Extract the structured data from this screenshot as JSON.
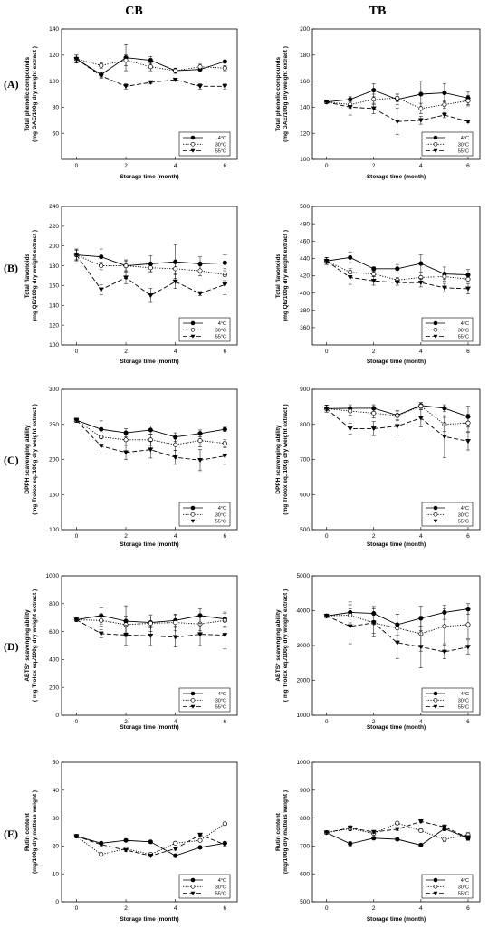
{
  "headers": {
    "left": "CB",
    "right": "TB"
  },
  "legend_labels": [
    "4°C",
    "30°C",
    "55°C"
  ],
  "chart_data": [
    {
      "id": "A-CB",
      "row": "(A)",
      "col": 0,
      "type": "line",
      "ylabel": [
        "Total phenolic compounds",
        "(mg GAE/100g dry weight extract )"
      ],
      "xlabel": "Storage time (month)",
      "ylim": [
        40,
        140
      ],
      "yticks": [
        60,
        80,
        100,
        120,
        140
      ],
      "xlim": [
        -0.6,
        6.5
      ],
      "xticks": [
        0,
        2,
        4,
        6
      ],
      "x": [
        0,
        1,
        2,
        3,
        4,
        5,
        6
      ],
      "series": [
        {
          "name": "4°C",
          "values": [
            117,
            105,
            118,
            116,
            108,
            109,
            115
          ],
          "err": [
            3,
            2,
            10,
            3,
            2,
            2,
            1
          ]
        },
        {
          "name": "30°C",
          "values": [
            117,
            112,
            116,
            111,
            108,
            111,
            110
          ],
          "err": [
            3,
            2,
            4,
            3,
            2,
            2,
            2
          ]
        },
        {
          "name": "55°C",
          "values": [
            117,
            104,
            96,
            99,
            101,
            96,
            96
          ],
          "err": [
            3,
            2,
            2,
            1,
            1,
            2,
            2
          ]
        }
      ]
    },
    {
      "id": "A-TB",
      "row": "(A)",
      "col": 1,
      "type": "line",
      "ylabel": [
        "Total phenolic compounds",
        "(mg GAE/100g dry weight extract )"
      ],
      "xlabel": "Storage time (month)",
      "ylim": [
        100,
        200
      ],
      "yticks": [
        100,
        120,
        140,
        160,
        180,
        200
      ],
      "xlim": [
        -0.6,
        6.5
      ],
      "xticks": [
        0,
        2,
        4,
        6
      ],
      "x": [
        0,
        1,
        2,
        3,
        4,
        5,
        6
      ],
      "series": [
        {
          "name": "4°C",
          "values": [
            144,
            146,
            153,
            146,
            150,
            151,
            147
          ],
          "err": [
            1,
            2,
            5,
            4,
            10,
            7,
            5
          ]
        },
        {
          "name": "30°C",
          "values": [
            144,
            142,
            146,
            147,
            139,
            142,
            145
          ],
          "err": [
            1,
            3,
            4,
            3,
            4,
            3,
            4
          ]
        },
        {
          "name": "55°C",
          "values": [
            144,
            140,
            139,
            129,
            130,
            134,
            129
          ],
          "err": [
            1,
            6,
            4,
            10,
            3,
            2,
            1
          ]
        }
      ]
    },
    {
      "id": "B-CB",
      "row": "(B)",
      "col": 0,
      "type": "line",
      "ylabel": [
        "Total flavonoids",
        "(mg QE/100g dry weight extract )"
      ],
      "xlabel": "Storage time (month)",
      "ylim": [
        100,
        240
      ],
      "yticks": [
        100,
        120,
        140,
        160,
        180,
        200,
        220,
        240
      ],
      "xlim": [
        -0.6,
        6.5
      ],
      "xticks": [
        0,
        2,
        4,
        6
      ],
      "x": [
        0,
        1,
        2,
        3,
        4,
        5,
        6
      ],
      "series": [
        {
          "name": "4°C",
          "values": [
            191,
            189,
            180,
            182,
            184,
            182,
            183
          ],
          "err": [
            6,
            8,
            6,
            8,
            17,
            7,
            8
          ]
        },
        {
          "name": "30°C",
          "values": [
            191,
            180,
            180,
            178,
            177,
            175,
            171
          ],
          "err": [
            5,
            4,
            5,
            4,
            5,
            5,
            6
          ]
        },
        {
          "name": "55°C",
          "values": [
            191,
            156,
            168,
            150,
            164,
            152,
            161
          ],
          "err": [
            5,
            5,
            6,
            7,
            7,
            2,
            10
          ]
        }
      ]
    },
    {
      "id": "B-TB",
      "row": "(B)",
      "col": 1,
      "type": "line",
      "ylabel": [
        "Total flavonoids",
        "(mg QE/100g dry weight extract )"
      ],
      "xlabel": "Storage time (month)",
      "ylim": [
        340,
        500
      ],
      "yticks": [
        360,
        380,
        400,
        420,
        440,
        460,
        480,
        500
      ],
      "xlim": [
        -0.6,
        6.5
      ],
      "xticks": [
        0,
        2,
        4,
        6
      ],
      "x": [
        0,
        1,
        2,
        3,
        4,
        5,
        6
      ],
      "series": [
        {
          "name": "4°C",
          "values": [
            437,
            441,
            428,
            428,
            434,
            422,
            421
          ],
          "err": [
            4,
            6,
            2,
            5,
            10,
            8,
            6
          ]
        },
        {
          "name": "30°C",
          "values": [
            437,
            424,
            422,
            415,
            418,
            419,
            416
          ],
          "err": [
            4,
            4,
            3,
            3,
            5,
            3,
            3
          ]
        },
        {
          "name": "55°C",
          "values": [
            437,
            418,
            414,
            412,
            412,
            406,
            405
          ],
          "err": [
            4,
            8,
            5,
            3,
            5,
            5,
            6
          ]
        }
      ]
    },
    {
      "id": "C-CB",
      "row": "(C)",
      "col": 0,
      "type": "line",
      "ylabel": [
        "DPPH scavenging ability",
        "(mg Trolox eq./100g dry weight extract )"
      ],
      "xlabel": "Storage time (month)",
      "ylim": [
        100,
        300
      ],
      "yticks": [
        100,
        150,
        200,
        250,
        300
      ],
      "xlim": [
        -0.6,
        6.5
      ],
      "xticks": [
        0,
        2,
        4,
        6
      ],
      "x": [
        0,
        1,
        2,
        3,
        4,
        5,
        6
      ],
      "series": [
        {
          "name": "4°C",
          "values": [
            256,
            243,
            238,
            242,
            232,
            237,
            243
          ],
          "err": [
            3,
            12,
            6,
            6,
            6,
            5,
            3
          ]
        },
        {
          "name": "30°C",
          "values": [
            256,
            232,
            228,
            228,
            221,
            227,
            223
          ],
          "err": [
            3,
            10,
            7,
            8,
            8,
            9,
            5
          ]
        },
        {
          "name": "55°C",
          "values": [
            256,
            219,
            210,
            214,
            203,
            199,
            205
          ],
          "err": [
            3,
            11,
            10,
            12,
            10,
            15,
            12
          ]
        }
      ]
    },
    {
      "id": "C-TB",
      "row": "(C)",
      "col": 1,
      "type": "line",
      "ylabel": [
        "DPPH scavenging ability",
        "(mg Trolox eq./100g dry weight extract )"
      ],
      "xlabel": "Storage time (month)",
      "ylim": [
        500,
        900
      ],
      "yticks": [
        500,
        600,
        700,
        800,
        900
      ],
      "xlim": [
        -0.6,
        6.5
      ],
      "xticks": [
        0,
        2,
        4,
        6
      ],
      "x": [
        0,
        1,
        2,
        3,
        4,
        5,
        6
      ],
      "series": [
        {
          "name": "4°C",
          "values": [
            845,
            846,
            846,
            826,
            854,
            846,
            822
          ],
          "err": [
            10,
            10,
            10,
            12,
            8,
            10,
            30
          ]
        },
        {
          "name": "30°C",
          "values": [
            845,
            838,
            832,
            825,
            852,
            800,
            804
          ],
          "err": [
            10,
            12,
            14,
            14,
            10,
            20,
            25
          ]
        },
        {
          "name": "55°C",
          "values": [
            845,
            788,
            788,
            795,
            818,
            765,
            752
          ],
          "err": [
            10,
            15,
            20,
            25,
            25,
            60,
            25
          ]
        }
      ]
    },
    {
      "id": "D-CB",
      "row": "(D)",
      "col": 0,
      "type": "line",
      "ylabel": [
        "ABTS⁺ scavenging ability",
        "( mg Trolox eq./100g dry weight extract )"
      ],
      "xlabel": "Storage time (month)",
      "ylim": [
        0,
        1000
      ],
      "yticks": [
        0,
        200,
        400,
        600,
        800,
        1000
      ],
      "xlim": [
        -0.6,
        6.5
      ],
      "xticks": [
        0,
        2,
        4,
        6
      ],
      "x": [
        0,
        1,
        2,
        3,
        4,
        5,
        6
      ],
      "series": [
        {
          "name": "4°C",
          "values": [
            685,
            715,
            675,
            665,
            680,
            715,
            690
          ],
          "err": [
            10,
            60,
            110,
            40,
            40,
            50,
            50
          ]
        },
        {
          "name": "30°C",
          "values": [
            685,
            680,
            650,
            660,
            665,
            655,
            680
          ],
          "err": [
            10,
            40,
            60,
            60,
            60,
            50,
            50
          ]
        },
        {
          "name": "55°C",
          "values": [
            685,
            585,
            575,
            570,
            560,
            580,
            575
          ],
          "err": [
            10,
            30,
            70,
            70,
            70,
            80,
            100
          ]
        }
      ]
    },
    {
      "id": "D-TB",
      "row": "(D)",
      "col": 1,
      "type": "line",
      "ylabel": [
        "ABTS⁺ scavenging ability",
        "( mg Trolox eq./100g dry weight extract )"
      ],
      "xlabel": "Storage time (month)",
      "ylim": [
        1000,
        5000
      ],
      "yticks": [
        1000,
        2000,
        3000,
        4000,
        5000
      ],
      "xlim": [
        -0.6,
        6.5
      ],
      "xticks": [
        0,
        2,
        4,
        6
      ],
      "x": [
        0,
        1,
        2,
        3,
        4,
        5,
        6
      ],
      "series": [
        {
          "name": "4°C",
          "values": [
            3850,
            3950,
            3920,
            3600,
            3780,
            3950,
            4050
          ],
          "err": [
            50,
            300,
            200,
            300,
            350,
            200,
            150
          ]
        },
        {
          "name": "30°C",
          "values": [
            3850,
            3870,
            3650,
            3500,
            3340,
            3550,
            3600
          ],
          "err": [
            50,
            300,
            300,
            400,
            500,
            500,
            400
          ]
        },
        {
          "name": "55°C",
          "values": [
            3850,
            3550,
            3650,
            3080,
            2960,
            2820,
            2960
          ],
          "err": [
            50,
            500,
            400,
            450,
            600,
            200,
            200
          ]
        }
      ]
    },
    {
      "id": "E-CB",
      "row": "(E)",
      "col": 0,
      "type": "line",
      "ylabel": [
        "Rutin content",
        "(mg/100g dry matters weight )"
      ],
      "xlabel": "Storage time (month)",
      "ylim": [
        0,
        50
      ],
      "yticks": [
        0,
        10,
        20,
        30,
        40,
        50
      ],
      "xlim": [
        -0.6,
        6.5
      ],
      "xticks": [
        0,
        2,
        4,
        6
      ],
      "x": [
        0,
        1,
        2,
        3,
        4,
        5,
        6
      ],
      "series": [
        {
          "name": "4°C",
          "values": [
            23.5,
            21,
            22,
            21.5,
            16.5,
            19.5,
            21
          ],
          "err": [
            0.5,
            0.5,
            0.5,
            0.5,
            0.5,
            0.5,
            0.5
          ]
        },
        {
          "name": "30°C",
          "values": [
            23.5,
            17,
            19,
            17,
            21,
            22,
            28
          ],
          "err": [
            0.5,
            0.5,
            0.5,
            0.5,
            0.5,
            0.5,
            0.5
          ]
        },
        {
          "name": "55°C",
          "values": [
            23.5,
            20.5,
            18.5,
            16.5,
            19,
            24,
            20.5
          ],
          "err": [
            0.5,
            0.5,
            0.5,
            0.5,
            0.5,
            0.5,
            0.5
          ]
        }
      ]
    },
    {
      "id": "E-TB",
      "row": "(E)",
      "col": 1,
      "type": "line",
      "ylabel": [
        "Rutin content",
        "(mg/100g dry matters weight )"
      ],
      "xlabel": "Storage time (month)",
      "ylim": [
        500,
        1000
      ],
      "yticks": [
        500,
        600,
        700,
        800,
        900,
        1000
      ],
      "xlim": [
        -0.6,
        6.5
      ],
      "xticks": [
        0,
        2,
        4,
        6
      ],
      "x": [
        0,
        1,
        2,
        3,
        4,
        5,
        6
      ],
      "series": [
        {
          "name": "4°C",
          "values": [
            748,
            708,
            728,
            724,
            703,
            762,
            728
          ],
          "err": [
            5,
            8,
            5,
            5,
            5,
            8,
            8
          ]
        },
        {
          "name": "30°C",
          "values": [
            748,
            762,
            745,
            782,
            755,
            724,
            740
          ],
          "err": [
            5,
            8,
            5,
            5,
            5,
            8,
            8
          ]
        },
        {
          "name": "55°C",
          "values": [
            748,
            765,
            750,
            760,
            788,
            768,
            730
          ],
          "err": [
            5,
            8,
            5,
            5,
            5,
            8,
            8
          ]
        }
      ]
    }
  ]
}
